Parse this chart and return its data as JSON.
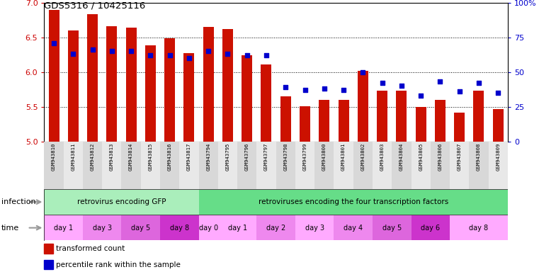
{
  "title": "GDS5316 / 10425116",
  "samples": [
    "GSM943810",
    "GSM943811",
    "GSM943812",
    "GSM943813",
    "GSM943814",
    "GSM943815",
    "GSM943816",
    "GSM943817",
    "GSM943794",
    "GSM943795",
    "GSM943796",
    "GSM943797",
    "GSM943798",
    "GSM943799",
    "GSM943800",
    "GSM943801",
    "GSM943802",
    "GSM943803",
    "GSM943804",
    "GSM943805",
    "GSM943806",
    "GSM943807",
    "GSM943808",
    "GSM943809"
  ],
  "bar_values": [
    6.9,
    6.6,
    6.83,
    6.66,
    6.64,
    6.39,
    6.49,
    6.27,
    6.65,
    6.62,
    6.24,
    6.11,
    5.65,
    5.51,
    5.6,
    5.6,
    6.02,
    5.73,
    5.73,
    5.5,
    5.6,
    5.42,
    5.73,
    5.47
  ],
  "percentile_values": [
    71,
    63,
    66,
    65,
    65,
    62,
    62,
    60,
    65,
    63,
    62,
    62,
    39,
    37,
    38,
    37,
    50,
    42,
    40,
    33,
    43,
    36,
    42,
    35
  ],
  "ylim_left": [
    5.0,
    7.0
  ],
  "ylim_right": [
    0,
    100
  ],
  "yticks_left": [
    5.0,
    5.5,
    6.0,
    6.5,
    7.0
  ],
  "yticks_right": [
    0,
    25,
    50,
    75,
    100
  ],
  "ytick_labels_right": [
    "0",
    "25",
    "50",
    "75",
    "100%"
  ],
  "bar_color": "#cc1100",
  "dot_color": "#0000cc",
  "bar_bottom": 5.0,
  "infection_groups": [
    {
      "label": "retrovirus encoding GFP",
      "start": 0,
      "end": 8,
      "color": "#aaeebb"
    },
    {
      "label": "retroviruses encoding the four transcription factors",
      "start": 8,
      "end": 24,
      "color": "#66dd88"
    }
  ],
  "time_groups": [
    {
      "label": "day 1",
      "start": 0,
      "end": 2,
      "color": "#ffaaff"
    },
    {
      "label": "day 3",
      "start": 2,
      "end": 4,
      "color": "#ee88ee"
    },
    {
      "label": "day 5",
      "start": 4,
      "end": 6,
      "color": "#dd66dd"
    },
    {
      "label": "day 8",
      "start": 6,
      "end": 8,
      "color": "#cc33cc"
    },
    {
      "label": "day 0",
      "start": 8,
      "end": 9,
      "color": "#ffaaff"
    },
    {
      "label": "day 1",
      "start": 9,
      "end": 11,
      "color": "#ffaaff"
    },
    {
      "label": "day 2",
      "start": 11,
      "end": 13,
      "color": "#ee88ee"
    },
    {
      "label": "day 3",
      "start": 13,
      "end": 15,
      "color": "#ffaaff"
    },
    {
      "label": "day 4",
      "start": 15,
      "end": 17,
      "color": "#ee88ee"
    },
    {
      "label": "day 5",
      "start": 17,
      "end": 19,
      "color": "#dd66dd"
    },
    {
      "label": "day 6",
      "start": 19,
      "end": 21,
      "color": "#cc33cc"
    },
    {
      "label": "day 8",
      "start": 21,
      "end": 24,
      "color": "#ffaaff"
    }
  ],
  "legend_items": [
    {
      "label": "transformed count",
      "color": "#cc1100"
    },
    {
      "label": "percentile rank within the sample",
      "color": "#0000cc"
    }
  ],
  "bg_color": "#ffffff",
  "tick_color_left": "#cc0000",
  "tick_color_right": "#0000cc",
  "label_infection": "infection",
  "label_time": "time",
  "arrow_color": "#aaaaaa"
}
